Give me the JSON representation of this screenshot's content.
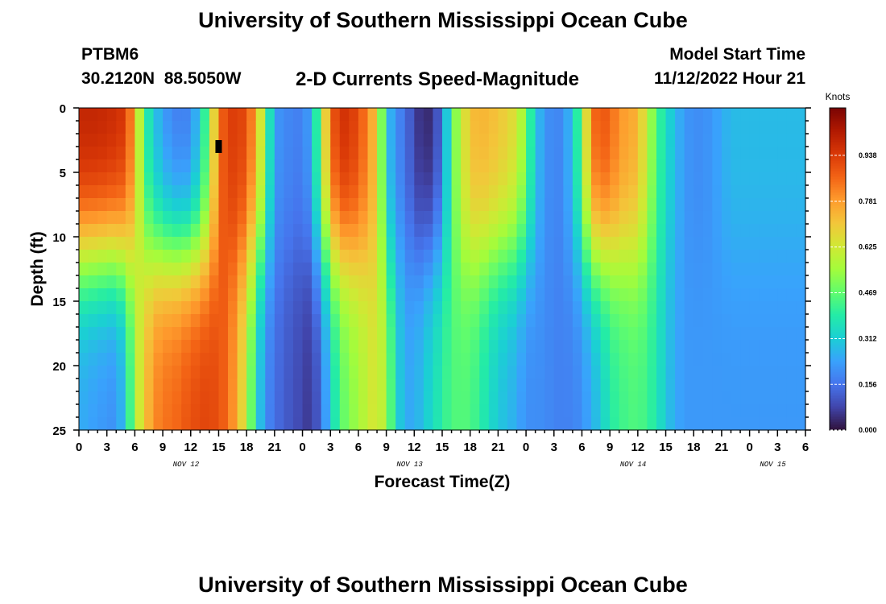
{
  "page": {
    "title": "University of Southern Mississippi Ocean Cube",
    "footer_title": "University of Southern Mississippi Ocean Cube"
  },
  "header": {
    "station_id": "PTBM6",
    "coordinates": "30.2120N  88.5050W",
    "chart_title": "2-D Currents Speed-Magnitude",
    "model_start_label": "Model Start Time",
    "model_start_value": "11/12/2022 Hour 21"
  },
  "chart_data": {
    "type": "heatmap",
    "title": "2-D Currents Speed-Magnitude",
    "xlabel": "Forecast Time(Z)",
    "ylabel": "Depth (ft)",
    "x_hours_range": [
      0,
      78
    ],
    "x_tick_labels": [
      "0",
      "3",
      "6",
      "9",
      "12",
      "15",
      "18",
      "21",
      "0",
      "3",
      "6",
      "9",
      "12",
      "15",
      "18",
      "21",
      "0",
      "3",
      "6",
      "9",
      "12",
      "15",
      "18",
      "21",
      "0",
      "3",
      "6"
    ],
    "date_labels": [
      {
        "label": "NOV 12",
        "at_hour": 11.5
      },
      {
        "label": "NOV 13",
        "at_hour": 35.5
      },
      {
        "label": "NOV 14",
        "at_hour": 59.5
      },
      {
        "label": "NOV 15",
        "at_hour": 74.5
      }
    ],
    "y_range": [
      0,
      25
    ],
    "y_inverted": true,
    "y_tick_labels": [
      "0",
      "5",
      "10",
      "15",
      "20",
      "25"
    ],
    "colorbar": {
      "unit_label": "Knots",
      "range": [
        0,
        1.1
      ],
      "tick_labels": [
        "0.000",
        "0.156",
        "0.312",
        "0.469",
        "0.625",
        "0.781",
        "0.938"
      ],
      "colors": [
        "#30123b",
        "#4145ab",
        "#4675ed",
        "#39a2fc",
        "#1bcfd4",
        "#24eca6",
        "#61fc6c",
        "#a4fc3b",
        "#d1e834",
        "#f3c63a",
        "#fe9b2d",
        "#f36315",
        "#d93807",
        "#b11901",
        "#7a0403"
      ]
    },
    "speed_profile_knots": {
      "hours": [
        0,
        2,
        4,
        5,
        6,
        7,
        8,
        9,
        10,
        11,
        12,
        13,
        14,
        15,
        16,
        17,
        18,
        19,
        20,
        21,
        22,
        23,
        24,
        25,
        26,
        27,
        28,
        30,
        32,
        33,
        34,
        35,
        36,
        37,
        38,
        39,
        40,
        41,
        42,
        43,
        45,
        47,
        48,
        49,
        50,
        51,
        52,
        53,
        54,
        55,
        56,
        57,
        58,
        60,
        61,
        62,
        63,
        64,
        65,
        66,
        67,
        68,
        69,
        70,
        71,
        72,
        73,
        74,
        75,
        76,
        77,
        78
      ],
      "surface": [
        1.0,
        1.0,
        0.98,
        0.95,
        0.75,
        0.42,
        0.3,
        0.22,
        0.18,
        0.16,
        0.18,
        0.3,
        0.5,
        0.85,
        0.92,
        0.95,
        0.9,
        0.78,
        0.5,
        0.22,
        0.2,
        0.18,
        0.18,
        0.25,
        0.55,
        0.85,
        0.98,
        0.92,
        0.7,
        0.3,
        0.2,
        0.15,
        0.08,
        0.02,
        0.05,
        0.15,
        0.45,
        0.6,
        0.72,
        0.75,
        0.72,
        0.65,
        0.5,
        0.3,
        0.22,
        0.18,
        0.2,
        0.3,
        0.5,
        0.85,
        0.9,
        0.88,
        0.8,
        0.75,
        0.6,
        0.45,
        0.35,
        0.28,
        0.22,
        0.2,
        0.2,
        0.22,
        0.25,
        0.28,
        0.28,
        0.28,
        0.28,
        0.28,
        0.28,
        0.28,
        0.28,
        0.28
      ],
      "bottom": [
        0.25,
        0.22,
        0.2,
        0.3,
        0.55,
        0.7,
        0.8,
        0.85,
        0.85,
        0.88,
        0.9,
        0.92,
        0.92,
        0.9,
        0.85,
        0.75,
        0.6,
        0.35,
        0.2,
        0.15,
        0.12,
        0.1,
        0.08,
        0.05,
        0.15,
        0.3,
        0.45,
        0.55,
        0.65,
        0.55,
        0.35,
        0.25,
        0.25,
        0.3,
        0.35,
        0.4,
        0.45,
        0.45,
        0.45,
        0.4,
        0.3,
        0.25,
        0.2,
        0.2,
        0.2,
        0.18,
        0.18,
        0.18,
        0.2,
        0.25,
        0.3,
        0.38,
        0.42,
        0.45,
        0.42,
        0.38,
        0.3,
        0.25,
        0.22,
        0.22,
        0.22,
        0.22,
        0.22,
        0.22,
        0.22,
        0.22,
        0.22,
        0.22,
        0.22,
        0.22,
        0.22,
        0.22
      ]
    },
    "missing_cell": {
      "hour": 15,
      "depth_ft": 3
    }
  }
}
